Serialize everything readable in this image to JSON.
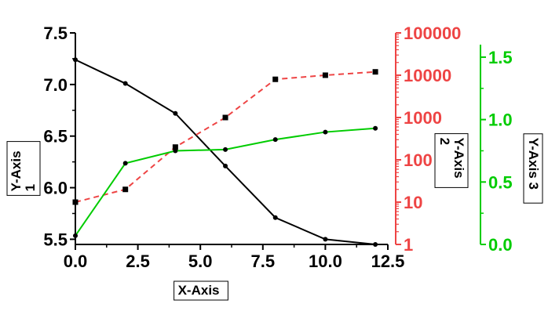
{
  "chart_data": {
    "type": "line",
    "x": [
      0,
      2,
      4,
      6,
      8,
      10,
      12
    ],
    "xlabel": "X-Axis",
    "xlim": [
      0,
      12.5
    ],
    "xticks": [
      0,
      2.5,
      5,
      7.5,
      10,
      12.5
    ],
    "xtick_labels": [
      "0.0",
      "2.5",
      "5.0",
      "7.5",
      "10.0",
      "12.5"
    ],
    "grid": false,
    "axes": [
      {
        "id": "y1",
        "label": "Y-Axis 1",
        "label_lines": [
          "Y-Axis",
          "1"
        ],
        "side": "left",
        "scale": "linear",
        "ylim": [
          5.45,
          7.5
        ],
        "color": "#000000",
        "ticks": [
          5.5,
          6.0,
          6.5,
          7.0,
          7.5
        ],
        "tick_labels": [
          "5.5",
          "6.0",
          "6.5",
          "7.0",
          "7.5"
        ]
      },
      {
        "id": "y2",
        "label": "Y-Axis 2",
        "label_lines": [
          "Y-Axis",
          "2"
        ],
        "side": "right",
        "scale": "log",
        "ylim": [
          1,
          100000
        ],
        "color": "#ee4444",
        "ticks": [
          1,
          10,
          100,
          1000,
          10000,
          100000
        ],
        "tick_labels": [
          "1",
          "10",
          "100",
          "1000",
          "10000",
          "100000"
        ]
      },
      {
        "id": "y3",
        "label": "Y-Axis 3",
        "label_lines": [
          "Y-Axis 3"
        ],
        "side": "right",
        "scale": "linear",
        "ylim": [
          0,
          1.6
        ],
        "color": "#00cc00",
        "ticks": [
          0,
          0.5,
          1.0,
          1.5
        ],
        "tick_labels": [
          "0.0",
          "0.5",
          "1.0",
          "1.5"
        ]
      }
    ],
    "series": [
      {
        "axis": "y1",
        "color": "#000000",
        "style": "solid",
        "marker": "circle",
        "values": [
          7.24,
          7.01,
          6.72,
          6.21,
          5.71,
          5.5,
          5.45
        ]
      },
      {
        "axis": "y2",
        "color": "#ee4444",
        "style": "dashed",
        "marker": "square",
        "values": [
          10,
          20,
          200,
          1000,
          8000,
          10000,
          12000
        ]
      },
      {
        "axis": "y3",
        "color": "#00cc00",
        "style": "solid",
        "marker": "circle",
        "values": [
          0.07,
          0.65,
          0.75,
          0.76,
          0.84,
          0.9,
          0.93
        ]
      }
    ]
  }
}
